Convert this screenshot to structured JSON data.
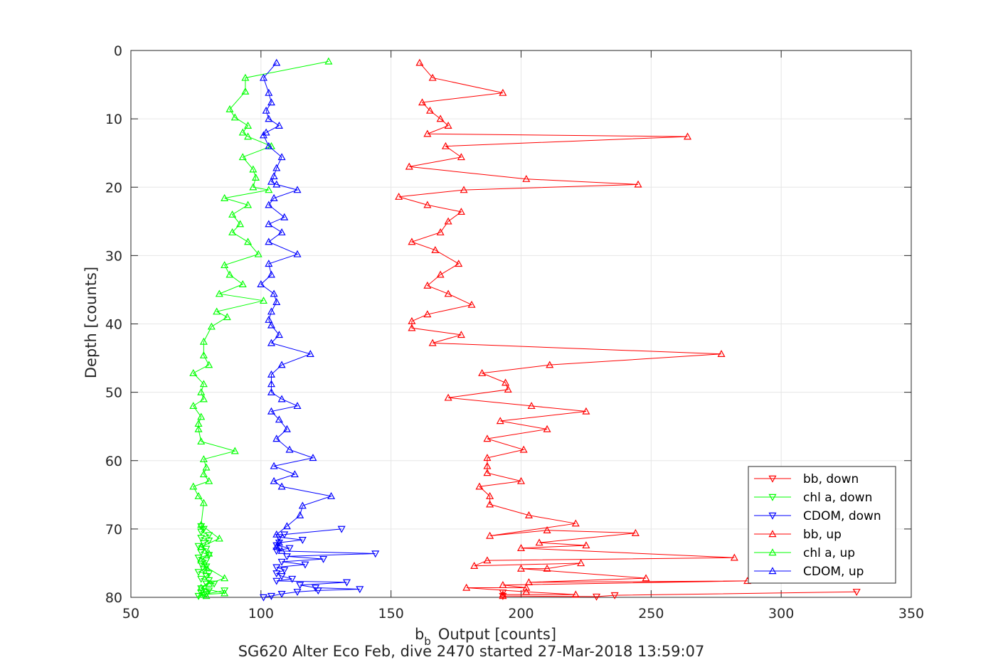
{
  "chart_data": {
    "type": "line",
    "xlabel": "Output [counts]",
    "xlabel_prefix": "b",
    "xlabel_subscript": "b",
    "ylabel": "Depth [counts]",
    "caption": "SG620 Alter Eco Feb, dive 2470 started 27-Mar-2018 13:59:07",
    "xlim": [
      50,
      350
    ],
    "ylim": [
      0,
      80
    ],
    "y_reversed": true,
    "grid": true,
    "xticks": [
      50,
      100,
      150,
      200,
      250,
      300,
      350
    ],
    "yticks": [
      0,
      10,
      20,
      30,
      40,
      50,
      60,
      70,
      80
    ],
    "legend_position": "bottom-right",
    "colors": {
      "red": "#ff0000",
      "green": "#00ff00",
      "blue": "#0000ff",
      "grid": "#e6e6e6",
      "axis": "#262626"
    },
    "series": [
      {
        "name": "bb, down",
        "color": "#ff0000",
        "marker": "triangle-down",
        "points": [
          [
            329,
            79.2
          ],
          [
            236,
            79.7
          ],
          [
            229,
            79.9
          ],
          [
            193,
            79.8
          ],
          [
            193,
            79.3
          ]
        ]
      },
      {
        "name": "chl a, down",
        "color": "#00ff00",
        "marker": "triangle-down",
        "points": [
          [
            86,
            79.0
          ],
          [
            79,
            79.5
          ],
          [
            76,
            79.8
          ],
          [
            78,
            79.7
          ],
          [
            77,
            79.3
          ],
          [
            80,
            79.0
          ],
          [
            77,
            78.7
          ],
          [
            79,
            78.0
          ],
          [
            82,
            78.0
          ],
          [
            80,
            77.5
          ],
          [
            77,
            77.3
          ],
          [
            79,
            76.9
          ],
          [
            80,
            76.5
          ],
          [
            76,
            76.3
          ],
          [
            78,
            75.9
          ],
          [
            79,
            75.5
          ],
          [
            77,
            75.1
          ],
          [
            79,
            74.6
          ],
          [
            76,
            74.2
          ],
          [
            80,
            73.8
          ],
          [
            77,
            73.4
          ],
          [
            79,
            72.9
          ],
          [
            76,
            72.5
          ],
          [
            78,
            72.1
          ],
          [
            80,
            71.7
          ],
          [
            77,
            71.3
          ],
          [
            80,
            70.9
          ],
          [
            77,
            70.4
          ],
          [
            78,
            70.0
          ],
          [
            77,
            69.6
          ]
        ]
      },
      {
        "name": "CDOM, down",
        "color": "#0000ff",
        "marker": "triangle-down",
        "points": [
          [
            101,
            80.0
          ],
          [
            104,
            79.8
          ],
          [
            108,
            79.5
          ],
          [
            114,
            79.2
          ],
          [
            122,
            79.0
          ],
          [
            138,
            78.8
          ],
          [
            121,
            78.6
          ],
          [
            115,
            78.2
          ],
          [
            133,
            77.8
          ],
          [
            106,
            77.6
          ],
          [
            112,
            77.3
          ],
          [
            108,
            76.9
          ],
          [
            106,
            76.5
          ],
          [
            109,
            76.0
          ],
          [
            106,
            75.6
          ],
          [
            117,
            75.2
          ],
          [
            108,
            74.8
          ],
          [
            124,
            74.4
          ],
          [
            110,
            74.0
          ],
          [
            144,
            73.6
          ],
          [
            106,
            73.2
          ],
          [
            111,
            72.8
          ],
          [
            106,
            72.4
          ],
          [
            107,
            72.0
          ],
          [
            116,
            71.6
          ],
          [
            107,
            71.2
          ],
          [
            109,
            70.8
          ],
          [
            131,
            70.0
          ]
        ]
      },
      {
        "name": "bb, up",
        "color": "#ff0000",
        "marker": "triangle-up",
        "points": [
          [
            161,
            1.8
          ],
          [
            166,
            4.0
          ],
          [
            193,
            6.2
          ],
          [
            162,
            7.6
          ],
          [
            165,
            8.8
          ],
          [
            169,
            10.0
          ],
          [
            172,
            11.0
          ],
          [
            164,
            12.2
          ],
          [
            264,
            12.6
          ],
          [
            171,
            14.0
          ],
          [
            177,
            15.6
          ],
          [
            157,
            17.0
          ],
          [
            202,
            18.8
          ],
          [
            245,
            19.6
          ],
          [
            178,
            20.4
          ],
          [
            153,
            21.4
          ],
          [
            164,
            22.6
          ],
          [
            177,
            23.6
          ],
          [
            172,
            25.0
          ],
          [
            169,
            26.6
          ],
          [
            158,
            28.0
          ],
          [
            167,
            29.2
          ],
          [
            176,
            31.2
          ],
          [
            169,
            32.8
          ],
          [
            164,
            34.4
          ],
          [
            172,
            35.6
          ],
          [
            181,
            37.2
          ],
          [
            164,
            38.6
          ],
          [
            158,
            39.6
          ],
          [
            158,
            40.6
          ],
          [
            177,
            41.6
          ],
          [
            166,
            42.8
          ],
          [
            277,
            44.4
          ],
          [
            211,
            46.0
          ],
          [
            185,
            47.2
          ],
          [
            194,
            48.6
          ],
          [
            195,
            49.6
          ],
          [
            172,
            50.8
          ],
          [
            204,
            52.0
          ],
          [
            225,
            52.8
          ],
          [
            192,
            54.2
          ],
          [
            210,
            55.4
          ],
          [
            187,
            56.8
          ],
          [
            201,
            58.4
          ],
          [
            187,
            59.6
          ],
          [
            187,
            60.8
          ],
          [
            187,
            61.8
          ],
          [
            200,
            63.0
          ],
          [
            184,
            63.8
          ],
          [
            188,
            65.2
          ],
          [
            188,
            66.4
          ],
          [
            203,
            68.0
          ],
          [
            221,
            69.2
          ],
          [
            188,
            71.0
          ],
          [
            210,
            70.2
          ],
          [
            244,
            70.6
          ],
          [
            207,
            72.0
          ],
          [
            225,
            72.4
          ],
          [
            200,
            72.8
          ],
          [
            282,
            74.2
          ],
          [
            187,
            74.6
          ],
          [
            182,
            75.4
          ],
          [
            223,
            75.0
          ],
          [
            210,
            75.8
          ],
          [
            200,
            75.8
          ],
          [
            248,
            77.2
          ],
          [
            203,
            77.8
          ],
          [
            287,
            77.6
          ],
          [
            193,
            78.2
          ],
          [
            202,
            78.6
          ],
          [
            179,
            78.6
          ],
          [
            202,
            79.2
          ],
          [
            221,
            79.6
          ],
          [
            193,
            79.6
          ],
          [
            193,
            79.8
          ]
        ]
      },
      {
        "name": "chl a, up",
        "color": "#00ff00",
        "marker": "triangle-up",
        "points": [
          [
            126,
            1.6
          ],
          [
            94,
            4.0
          ],
          [
            94,
            6.0
          ],
          [
            88,
            8.6
          ],
          [
            90,
            9.8
          ],
          [
            95,
            11.0
          ],
          [
            93,
            12.0
          ],
          [
            95,
            12.6
          ],
          [
            104,
            14.0
          ],
          [
            93,
            15.6
          ],
          [
            97,
            17.4
          ],
          [
            98,
            18.6
          ],
          [
            97,
            20.0
          ],
          [
            103,
            20.4
          ],
          [
            86,
            21.6
          ],
          [
            95,
            22.6
          ],
          [
            89,
            24.0
          ],
          [
            92,
            25.4
          ],
          [
            89,
            26.6
          ],
          [
            95,
            28.0
          ],
          [
            99,
            29.8
          ],
          [
            86,
            31.4
          ],
          [
            88,
            32.8
          ],
          [
            93,
            34.2
          ],
          [
            84,
            35.6
          ],
          [
            101,
            36.6
          ],
          [
            83,
            38.2
          ],
          [
            87,
            39.0
          ],
          [
            81,
            40.4
          ],
          [
            78,
            42.6
          ],
          [
            78,
            44.6
          ],
          [
            80,
            46.0
          ],
          [
            74,
            47.2
          ],
          [
            78,
            48.8
          ],
          [
            77,
            50.0
          ],
          [
            78,
            51.0
          ],
          [
            74,
            52.0
          ],
          [
            77,
            53.6
          ],
          [
            76,
            54.6
          ],
          [
            76,
            55.4
          ],
          [
            77,
            57.2
          ],
          [
            90,
            58.6
          ],
          [
            78,
            59.8
          ],
          [
            79,
            61.0
          ],
          [
            78,
            62.0
          ],
          [
            80,
            63.0
          ],
          [
            74,
            63.8
          ],
          [
            76,
            65.2
          ],
          [
            78,
            66.2
          ],
          [
            77,
            69.4
          ],
          [
            84,
            71.4
          ],
          [
            77,
            72.6
          ],
          [
            80,
            73.6
          ],
          [
            77,
            74.6
          ],
          [
            79,
            75.6
          ],
          [
            86,
            77.2
          ],
          [
            80,
            78.0
          ],
          [
            77,
            78.6
          ],
          [
            86,
            79.4
          ],
          [
            77,
            79.6
          ],
          [
            79,
            79.8
          ]
        ]
      },
      {
        "name": "CDOM, up",
        "color": "#0000ff",
        "marker": "triangle-up",
        "points": [
          [
            106,
            1.8
          ],
          [
            101,
            4.0
          ],
          [
            103,
            6.2
          ],
          [
            104,
            7.6
          ],
          [
            102,
            8.8
          ],
          [
            103,
            10.0
          ],
          [
            107,
            11.0
          ],
          [
            102,
            12.0
          ],
          [
            101,
            12.4
          ],
          [
            103,
            14.0
          ],
          [
            108,
            15.6
          ],
          [
            106,
            17.2
          ],
          [
            105,
            18.4
          ],
          [
            104,
            19.2
          ],
          [
            106,
            19.6
          ],
          [
            114,
            20.4
          ],
          [
            105,
            21.6
          ],
          [
            103,
            22.6
          ],
          [
            109,
            24.4
          ],
          [
            103,
            25.4
          ],
          [
            108,
            26.6
          ],
          [
            103,
            28.0
          ],
          [
            114,
            29.8
          ],
          [
            103,
            31.2
          ],
          [
            104,
            32.8
          ],
          [
            100,
            34.2
          ],
          [
            105,
            35.6
          ],
          [
            106,
            36.8
          ],
          [
            104,
            38.2
          ],
          [
            103,
            39.4
          ],
          [
            104,
            40.2
          ],
          [
            107,
            41.6
          ],
          [
            104,
            42.8
          ],
          [
            119,
            44.4
          ],
          [
            108,
            46.0
          ],
          [
            104,
            47.4
          ],
          [
            104,
            48.8
          ],
          [
            104,
            50.0
          ],
          [
            108,
            51.0
          ],
          [
            114,
            52.0
          ],
          [
            104,
            52.8
          ],
          [
            107,
            54.0
          ],
          [
            110,
            55.4
          ],
          [
            106,
            56.8
          ],
          [
            111,
            58.4
          ],
          [
            120,
            59.6
          ],
          [
            105,
            60.8
          ],
          [
            113,
            62.0
          ],
          [
            105,
            63.0
          ],
          [
            108,
            63.8
          ],
          [
            127,
            65.2
          ],
          [
            116,
            66.6
          ],
          [
            115,
            68.0
          ],
          [
            110,
            69.6
          ],
          [
            106,
            70.8
          ],
          [
            107,
            72.0
          ],
          [
            106,
            72.6
          ],
          [
            108,
            73.2
          ]
        ]
      }
    ]
  }
}
